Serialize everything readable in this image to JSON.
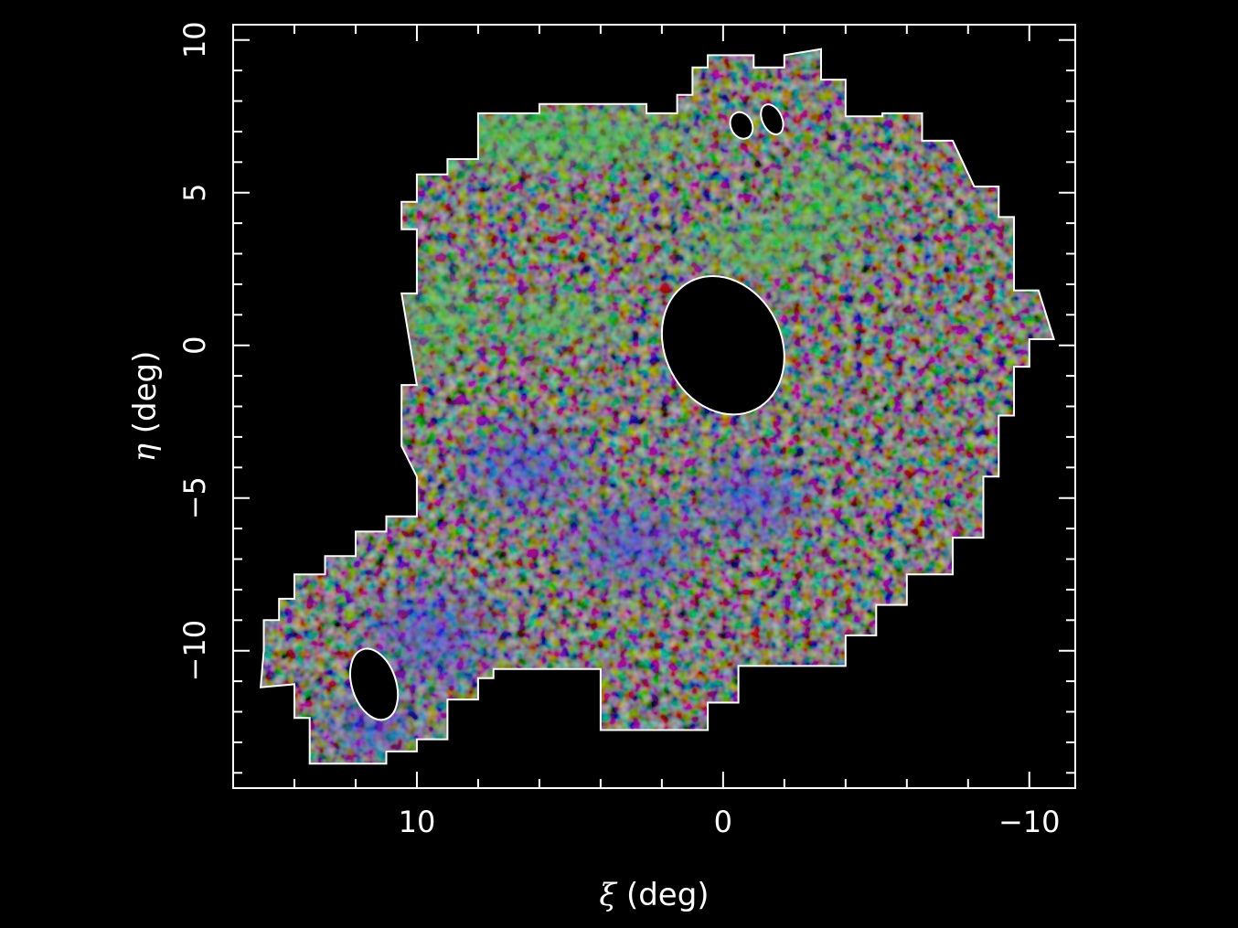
{
  "chart_data": {
    "type": "heatmap",
    "title": "",
    "xlabel": {
      "symbol": "ξ",
      "unit": " (deg)"
    },
    "ylabel": {
      "symbol": "η",
      "unit": " (deg)"
    },
    "xlim": [
      16,
      -11.5
    ],
    "ylim": [
      -14.5,
      10.5
    ],
    "x_axis_reversed": true,
    "x_major_ticks": [
      10,
      0,
      -10
    ],
    "x_tick_labels": [
      "10",
      "0",
      "−10"
    ],
    "x_minor_step": 2,
    "y_major_ticks": [
      10,
      5,
      0,
      -5,
      -10
    ],
    "y_tick_labels": [
      "10",
      "5",
      "0",
      "−5",
      "−10"
    ],
    "y_minor_step": 1,
    "grid": false,
    "background_color": "#000000",
    "frame_color": "#ffffff",
    "color_channels": [
      "red",
      "green",
      "blue"
    ],
    "footprint_outline": [
      [
        15.1,
        -11.2
      ],
      [
        14.0,
        -11.1
      ],
      [
        14.0,
        -12.2
      ],
      [
        13.5,
        -12.2
      ],
      [
        13.5,
        -13.7
      ],
      [
        11.0,
        -13.7
      ],
      [
        11.0,
        -13.3
      ],
      [
        10.0,
        -13.3
      ],
      [
        10.0,
        -12.9
      ],
      [
        9.0,
        -12.9
      ],
      [
        9.0,
        -11.6
      ],
      [
        8.0,
        -11.6
      ],
      [
        8.0,
        -10.9
      ],
      [
        7.5,
        -10.9
      ],
      [
        7.5,
        -10.6
      ],
      [
        4.0,
        -10.6
      ],
      [
        4.0,
        -12.6
      ],
      [
        0.5,
        -12.6
      ],
      [
        0.5,
        -11.7
      ],
      [
        -0.5,
        -11.7
      ],
      [
        -0.5,
        -10.5
      ],
      [
        -4.0,
        -10.5
      ],
      [
        -4.0,
        -9.5
      ],
      [
        -5.0,
        -9.5
      ],
      [
        -5.0,
        -8.5
      ],
      [
        -6.0,
        -8.5
      ],
      [
        -6.0,
        -7.5
      ],
      [
        -7.5,
        -7.5
      ],
      [
        -7.5,
        -6.3
      ],
      [
        -8.5,
        -6.3
      ],
      [
        -8.5,
        -4.3
      ],
      [
        -9.0,
        -4.3
      ],
      [
        -9.0,
        -2.3
      ],
      [
        -9.5,
        -2.3
      ],
      [
        -9.5,
        -0.7
      ],
      [
        -10.0,
        -0.7
      ],
      [
        -10.0,
        0.2
      ],
      [
        -10.8,
        0.2
      ],
      [
        -10.3,
        1.8
      ],
      [
        -9.5,
        1.8
      ],
      [
        -9.5,
        4.2
      ],
      [
        -9.0,
        4.2
      ],
      [
        -9.0,
        5.2
      ],
      [
        -8.2,
        5.2
      ],
      [
        -7.5,
        6.7
      ],
      [
        -6.5,
        6.7
      ],
      [
        -6.5,
        7.6
      ],
      [
        -5.2,
        7.6
      ],
      [
        -5.2,
        7.5
      ],
      [
        -4.0,
        7.5
      ],
      [
        -4.0,
        8.7
      ],
      [
        -3.2,
        8.7
      ],
      [
        -3.2,
        9.7
      ],
      [
        -2.0,
        9.5
      ],
      [
        -2.0,
        9.1
      ],
      [
        -1.0,
        9.1
      ],
      [
        -1.0,
        9.5
      ],
      [
        0.5,
        9.5
      ],
      [
        0.5,
        9.1
      ],
      [
        1.0,
        9.1
      ],
      [
        1.0,
        8.2
      ],
      [
        1.5,
        8.2
      ],
      [
        1.5,
        7.6
      ],
      [
        2.5,
        7.6
      ],
      [
        2.5,
        7.9
      ],
      [
        6.0,
        7.9
      ],
      [
        6.0,
        7.6
      ],
      [
        8.0,
        7.6
      ],
      [
        8.0,
        7.5
      ],
      [
        8.0,
        6.1
      ],
      [
        9.0,
        6.1
      ],
      [
        9.0,
        5.6
      ],
      [
        10.0,
        5.6
      ],
      [
        10.0,
        4.7
      ],
      [
        10.5,
        4.7
      ],
      [
        10.5,
        3.8
      ],
      [
        10.0,
        3.8
      ],
      [
        10.0,
        1.7
      ],
      [
        10.5,
        1.7
      ],
      [
        10.0,
        -1.3
      ],
      [
        10.5,
        -1.3
      ],
      [
        10.5,
        -3.3
      ],
      [
        10.0,
        -4.3
      ],
      [
        10.0,
        -5.6
      ],
      [
        11.0,
        -5.6
      ],
      [
        11.0,
        -6.1
      ],
      [
        12.0,
        -6.1
      ],
      [
        12.0,
        -6.9
      ],
      [
        13.0,
        -6.9
      ],
      [
        13.0,
        -7.5
      ],
      [
        14.0,
        -7.5
      ],
      [
        14.0,
        -8.3
      ],
      [
        14.5,
        -8.3
      ],
      [
        14.5,
        -9.0
      ],
      [
        15.0,
        -9.0
      ],
      [
        15.0,
        -10.0
      ]
    ],
    "excluded_regions": [
      {
        "center": [
          0.0,
          0.0
        ],
        "semi_axes": [
          1.9,
          2.35
        ],
        "angle": -27
      },
      {
        "center": [
          11.4,
          -11.1
        ],
        "semi_axes": [
          0.72,
          1.2
        ],
        "angle": -18
      },
      {
        "center": [
          -0.6,
          7.2
        ],
        "semi_axes": [
          0.35,
          0.45
        ],
        "angle": -25
      },
      {
        "center": [
          -1.6,
          7.4
        ],
        "semi_axes": [
          0.32,
          0.52
        ],
        "angle": -25
      }
    ],
    "features": [
      {
        "name": "green-enhanced-band",
        "region": "upper-left and upper-right",
        "color": "#35c23c"
      },
      {
        "name": "blue-enhanced-region",
        "region": "lower-left",
        "color": "#3b3bd6"
      }
    ]
  }
}
